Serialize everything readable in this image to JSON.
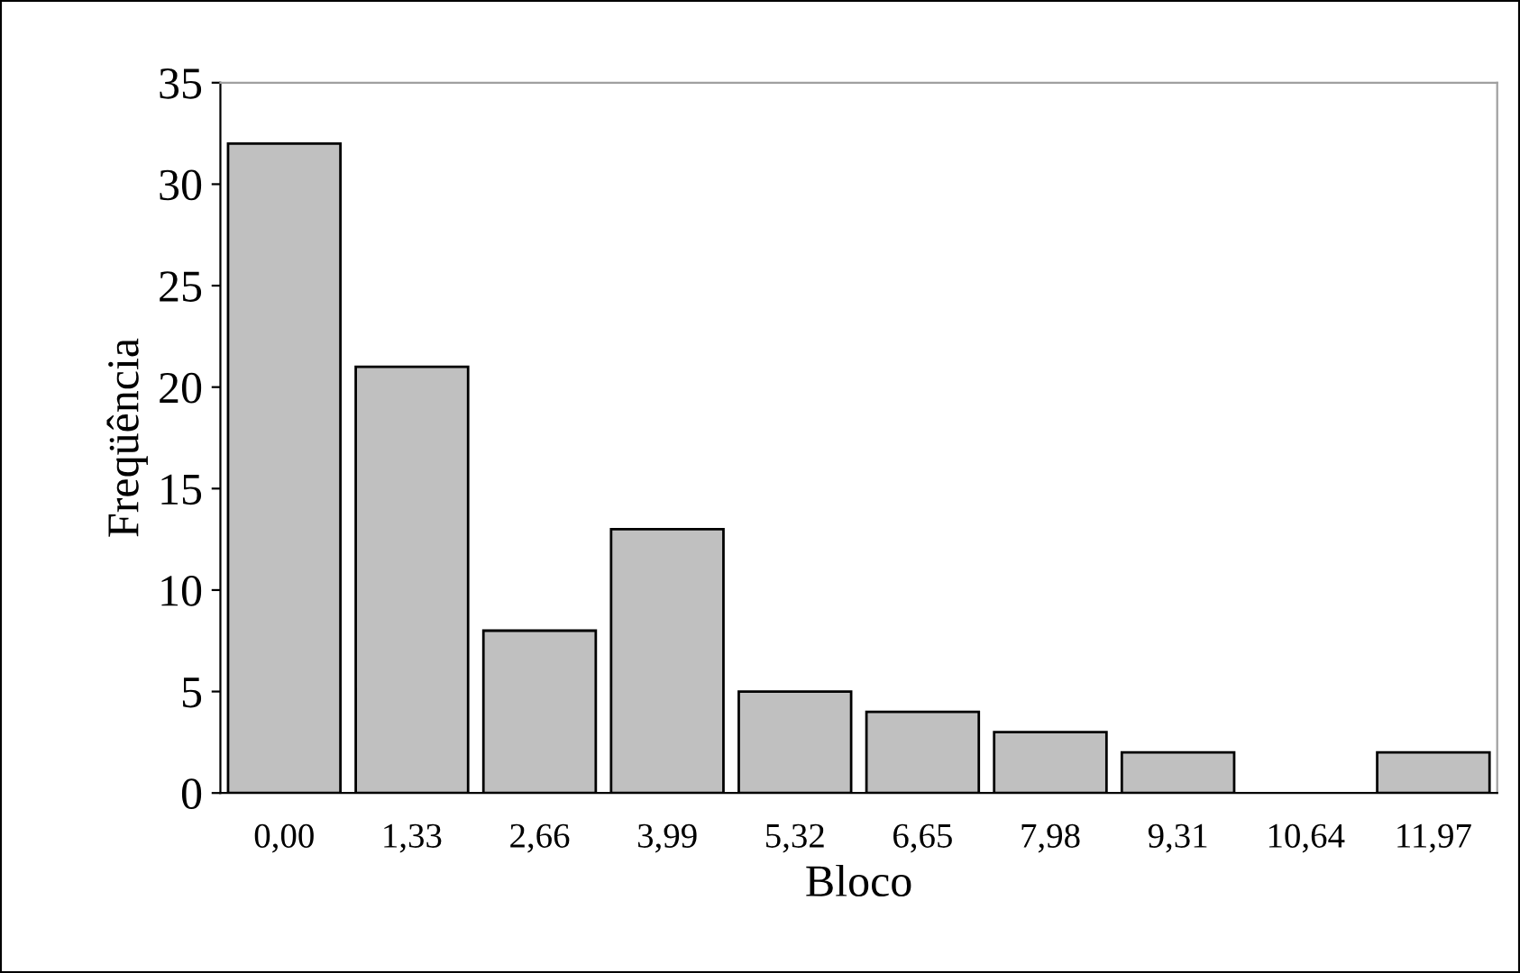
{
  "chart_data": {
    "type": "bar",
    "xlabel": "Bloco",
    "ylabel": "Freqüência",
    "categories": [
      "0,00",
      "1,33",
      "2,66",
      "3,99",
      "5,32",
      "6,65",
      "7,98",
      "9,31",
      "10,64",
      "11,97"
    ],
    "values": [
      32,
      21,
      8,
      13,
      5,
      4,
      3,
      2,
      0,
      2
    ],
    "color": "#c0c0c0",
    "ylim": [
      0,
      35
    ],
    "yticks": [
      0,
      5,
      10,
      15,
      20,
      25,
      30,
      35
    ],
    "grid": false,
    "legend": false
  }
}
